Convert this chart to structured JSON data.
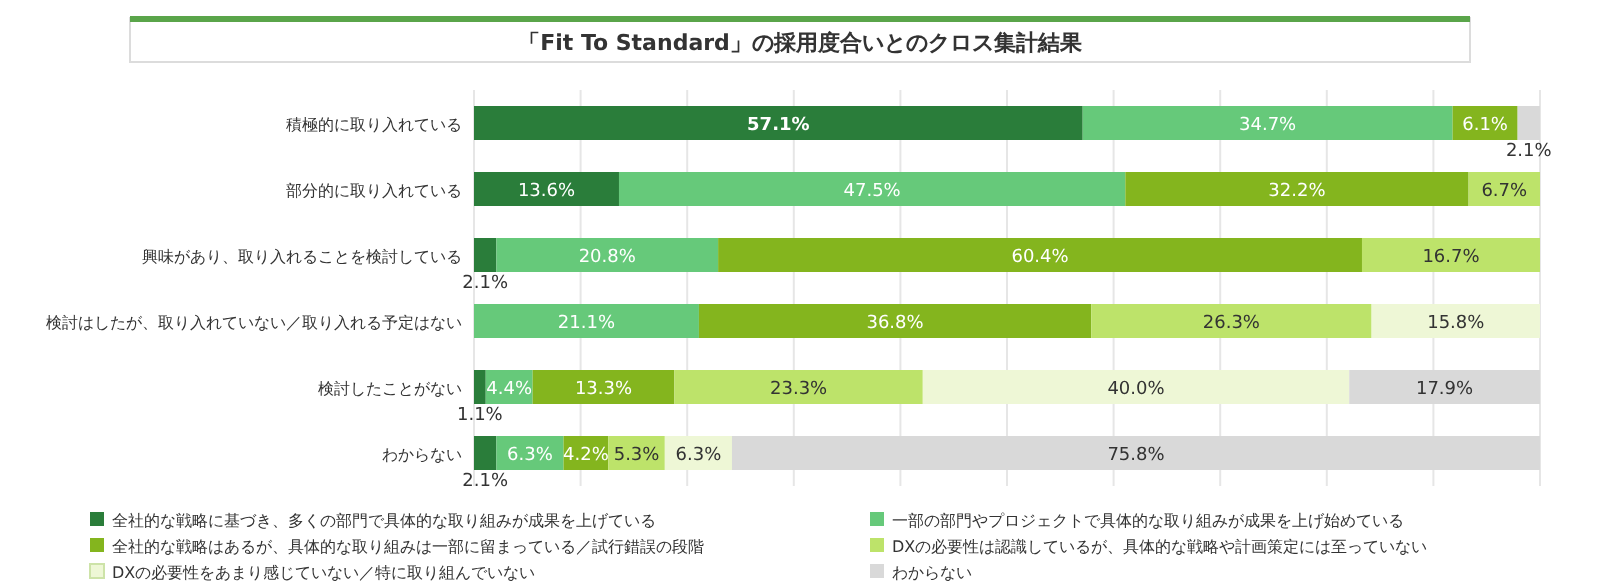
{
  "chart_data": {
    "type": "bar",
    "orientation": "horizontal",
    "stacked": true,
    "title": "「Fit To Standard」の採用度合いとのクロス集計結果",
    "categories": [
      "積極的に取り入れている",
      "部分的に取り入れている",
      "興味があり、取り入れることを検討している",
      "検討はしたが、取り入れていない／取り入れる予定はない",
      "検討したことがない",
      "わからない"
    ],
    "series": [
      {
        "name": "全社的な戦略に基づき、多くの部門で具体的な取り組みが成果を上げている",
        "color": "#2a7d3a",
        "values": [
          57.1,
          13.6,
          2.1,
          null,
          1.1,
          2.1
        ],
        "value_labels": [
          "57.1%",
          "13.6%",
          "2.1%",
          null,
          "1.1%",
          "2.1%"
        ]
      },
      {
        "name": "一部の部門やプロジェクトで具体的な取り組みが成果を上げ始めている",
        "color": "#66c97a",
        "values": [
          34.7,
          47.5,
          20.8,
          21.1,
          4.4,
          6.3
        ],
        "value_labels": [
          "34.7%",
          "47.5%",
          "20.8%",
          "21.1%",
          "4.4%",
          "6.3%"
        ]
      },
      {
        "name": "全社的な戦略はあるが、具体的な取り組みは一部に留まっている／試行錯誤の段階",
        "color": "#84b51e",
        "values": [
          6.1,
          32.2,
          60.4,
          36.8,
          13.3,
          4.2
        ],
        "value_labels": [
          "6.1%",
          "32.2%",
          "60.4%",
          "36.8%",
          "13.3%",
          "4.2%"
        ]
      },
      {
        "name": "DXの必要性は認識しているが、具体的な戦略や計画策定には至っていない",
        "color": "#bde36a",
        "values": [
          null,
          6.7,
          16.7,
          26.3,
          23.3,
          5.3
        ],
        "value_labels": [
          null,
          "6.7%",
          "16.7%",
          "26.3%",
          "23.3%",
          "5.3%"
        ]
      },
      {
        "name": "DXの必要性をあまり感じていない／特に取り組んでいない",
        "color": "#eef7d6",
        "values": [
          null,
          null,
          null,
          15.8,
          40.0,
          6.3
        ],
        "value_labels": [
          null,
          null,
          null,
          "15.8%",
          "40.0%",
          "6.3%"
        ]
      },
      {
        "name": "わからない",
        "color": "#d9d9d9",
        "values": [
          2.1,
          null,
          null,
          null,
          17.9,
          75.8
        ],
        "value_labels": [
          "2.1%",
          null,
          null,
          null,
          "17.9%",
          "75.8%"
        ]
      }
    ],
    "xlim": [
      0,
      100
    ],
    "xticks": [
      0,
      10,
      20,
      30,
      40,
      50,
      60,
      70,
      80,
      90,
      100
    ],
    "tick_labels": "y",
    "grid": "x",
    "legend": "bottom"
  }
}
